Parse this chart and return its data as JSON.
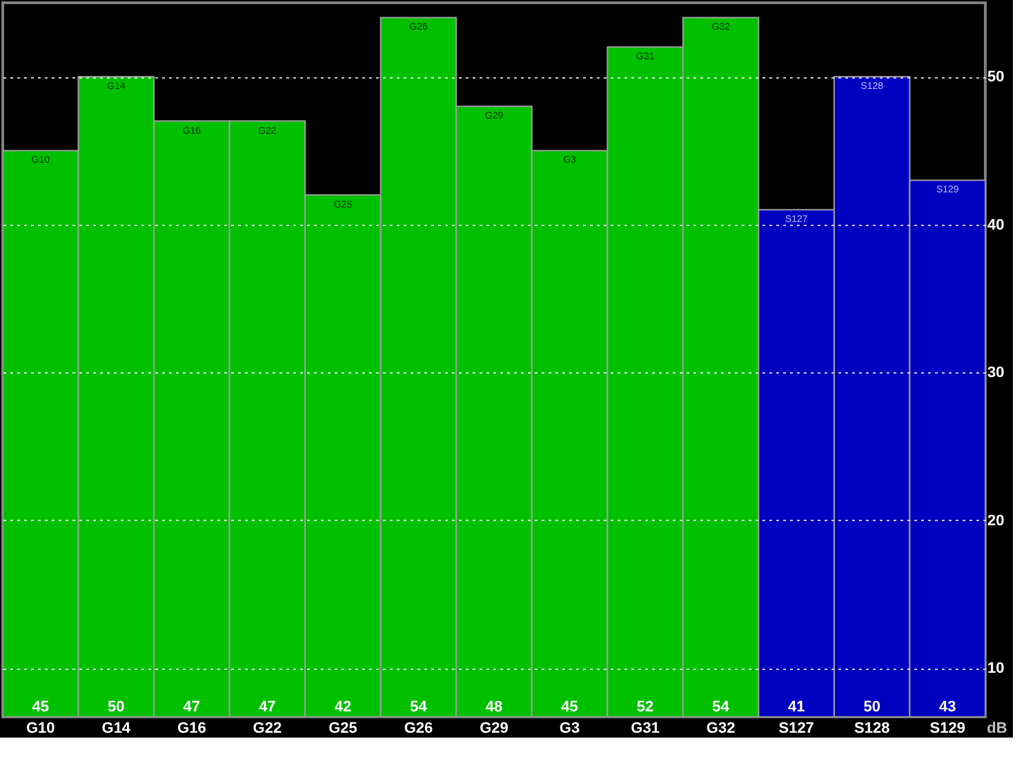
{
  "chart_data": {
    "type": "bar",
    "categories": [
      "G10",
      "G14",
      "G16",
      "G22",
      "G25",
      "G26",
      "G29",
      "G3",
      "G31",
      "G32",
      "S127",
      "S128",
      "S129"
    ],
    "values": [
      45,
      50,
      47,
      47,
      42,
      54,
      48,
      45,
      52,
      54,
      41,
      50,
      43
    ],
    "colors": [
      "#00c000",
      "#00c000",
      "#00c000",
      "#00c000",
      "#00c000",
      "#00c000",
      "#00c000",
      "#00c000",
      "#00c000",
      "#00c000",
      "#0000c0",
      "#0000c0",
      "#0000c0"
    ],
    "ylabel": "dB",
    "ylim": [
      6.7,
      55
    ],
    "yticks": [
      10,
      20,
      30,
      40,
      50
    ],
    "grid": "y",
    "data_labels": true
  }
}
